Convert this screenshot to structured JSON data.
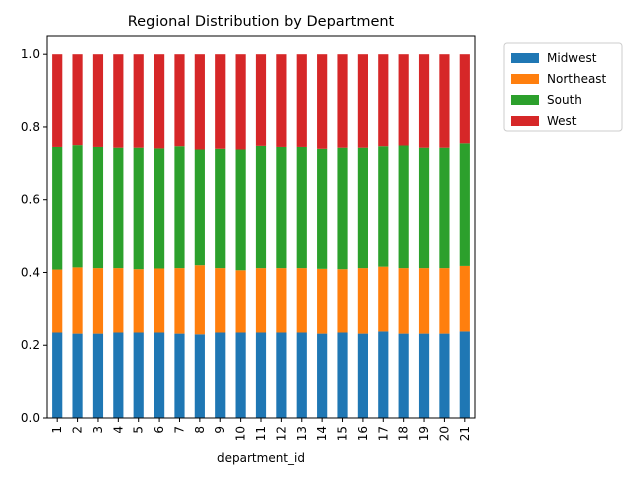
{
  "chart_data": {
    "type": "bar",
    "stacked": true,
    "title": "Regional Distribution by Department",
    "xlabel": "department_id",
    "ylabel": "",
    "ylim": [
      0,
      1.05
    ],
    "yticks": [
      "0.0",
      "0.2",
      "0.4",
      "0.6",
      "0.8",
      "1.0"
    ],
    "ytick_values": [
      0,
      0.2,
      0.4,
      0.6,
      0.8,
      1.0
    ],
    "grid": false,
    "legend_position": "outside-top-right",
    "categories": [
      "1",
      "2",
      "3",
      "4",
      "5",
      "6",
      "7",
      "8",
      "9",
      "10",
      "11",
      "12",
      "13",
      "14",
      "15",
      "16",
      "17",
      "18",
      "19",
      "20",
      "21"
    ],
    "series": [
      {
        "name": "Midwest",
        "color": "#1f77b4",
        "values": [
          0.235,
          0.232,
          0.232,
          0.235,
          0.235,
          0.235,
          0.232,
          0.23,
          0.235,
          0.235,
          0.235,
          0.235,
          0.235,
          0.232,
          0.235,
          0.232,
          0.238,
          0.232,
          0.232,
          0.232,
          0.238
        ]
      },
      {
        "name": "Northeast",
        "color": "#ff7f0e",
        "values": [
          0.173,
          0.182,
          0.18,
          0.177,
          0.174,
          0.176,
          0.18,
          0.19,
          0.177,
          0.171,
          0.177,
          0.177,
          0.177,
          0.178,
          0.174,
          0.18,
          0.178,
          0.18,
          0.18,
          0.18,
          0.18
        ]
      },
      {
        "name": "South",
        "color": "#2ca02c",
        "values": [
          0.337,
          0.336,
          0.333,
          0.331,
          0.334,
          0.33,
          0.335,
          0.318,
          0.328,
          0.332,
          0.336,
          0.333,
          0.333,
          0.33,
          0.334,
          0.331,
          0.331,
          0.337,
          0.331,
          0.331,
          0.337
        ]
      },
      {
        "name": "West",
        "color": "#d62728",
        "values": [
          0.255,
          0.25,
          0.255,
          0.257,
          0.257,
          0.259,
          0.253,
          0.262,
          0.26,
          0.262,
          0.252,
          0.255,
          0.255,
          0.26,
          0.257,
          0.257,
          0.253,
          0.251,
          0.257,
          0.257,
          0.245
        ]
      }
    ]
  }
}
